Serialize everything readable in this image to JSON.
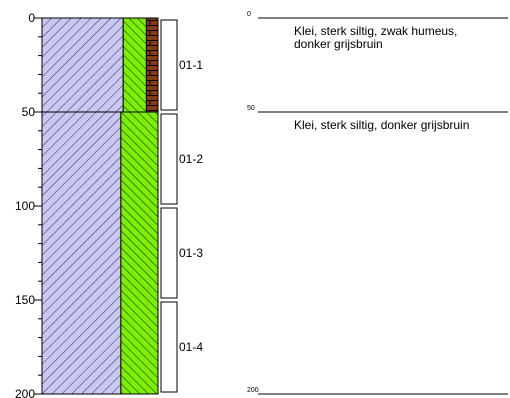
{
  "depth_axis": {
    "ticks": [
      "0",
      "50",
      "100",
      "150",
      "200"
    ]
  },
  "layers": [
    {
      "top": 0,
      "bottom": 50,
      "components": [
        {
          "name": "clay",
          "color": "#c8c8f0",
          "hatch": "clay-hatch"
        },
        {
          "name": "silt",
          "color": "#7cf000",
          "hatch": "silt-hatch"
        },
        {
          "name": "humus",
          "color": "#8b3a10",
          "hatch": "brick"
        }
      ]
    },
    {
      "top": 50,
      "bottom": 200,
      "components": [
        {
          "name": "clay",
          "color": "#c8c8f0",
          "hatch": "clay-hatch"
        },
        {
          "name": "silt",
          "color": "#7cf000",
          "hatch": "silt-hatch"
        }
      ]
    }
  ],
  "samples": [
    {
      "label": "01-1",
      "top": 0,
      "bottom": 50
    },
    {
      "label": "01-2",
      "top": 50,
      "bottom": 100
    },
    {
      "label": "01-3",
      "top": 100,
      "bottom": 150
    },
    {
      "label": "01-4",
      "top": 150,
      "bottom": 200
    }
  ],
  "descriptions": [
    {
      "depth_label": "0",
      "depth": 0,
      "text": "Klei, sterk siltig, zwak humeus,\ndonker grijsbruin"
    },
    {
      "depth_label": "50",
      "depth": 50,
      "text": "Klei, sterk siltig, donker grijsbruin"
    }
  ],
  "bottom_marker": {
    "depth_label": "200",
    "depth": 200
  }
}
